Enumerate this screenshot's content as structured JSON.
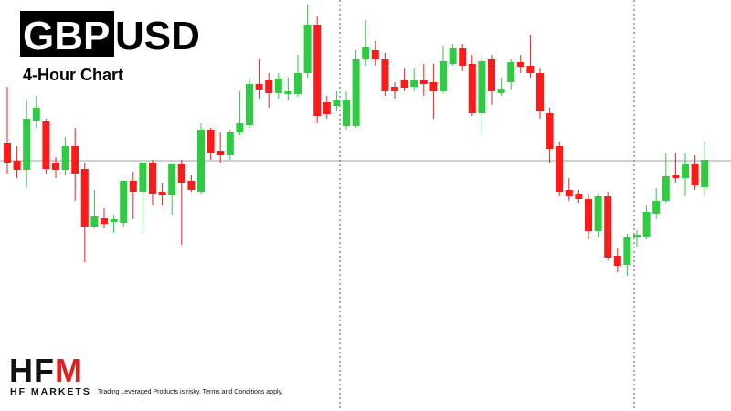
{
  "chart_data": {
    "type": "candlestick",
    "symbol_base": "GBP",
    "symbol_quote": "USD",
    "subtitle": "4-Hour Chart",
    "brand_mark": [
      "HF",
      "M"
    ],
    "brand_name": "HF MARKETS",
    "disclaimer": "Trading Leveraged Products is risky. Terms and Conditions apply.",
    "up_color": "#2ecc40",
    "down_color": "#ff1a1a",
    "ylim": [
      0,
      450
    ],
    "price_line": 274,
    "open": [
      293,
      274,
      264,
      318,
      317,
      272,
      264,
      290,
      265,
      202,
      211,
      207,
      206,
      252,
      240,
      272,
      240,
      236,
      270,
      252,
      240,
      308,
      285,
      280,
      305,
      313,
      358,
      362,
      348,
      347,
      347,
      370,
      423,
      338,
      334,
      312,
      312,
      385,
      395,
      385,
      355,
      362,
      355,
      362,
      360,
      350,
      380,
      397,
      380,
      326,
      385,
      348,
      360,
      382,
      378,
      370,
      326,
      290,
      242,
      238,
      232,
      197,
      235,
      170,
      160,
      190,
      190,
      216,
      230,
      258,
      255,
      270,
      245
    ],
    "high": [
      355,
      290,
      340,
      345,
      320,
      278,
      300,
      310,
      272,
      242,
      222,
      215,
      252,
      262,
      272,
      275,
      250,
      270,
      275,
      258,
      315,
      310,
      305,
      308,
      350,
      365,
      385,
      370,
      370,
      365,
      390,
      445,
      432,
      345,
      350,
      350,
      395,
      428,
      405,
      392,
      360,
      375,
      375,
      380,
      380,
      400,
      402,
      402,
      390,
      390,
      390,
      365,
      385,
      390,
      412,
      375,
      332,
      295,
      255,
      242,
      238,
      238,
      240,
      178,
      194,
      198,
      225,
      244,
      282,
      282,
      282,
      280,
      295
    ],
    "low": [
      260,
      255,
      245,
      310,
      260,
      255,
      258,
      230,
      163,
      200,
      200,
      195,
      202,
      210,
      195,
      225,
      225,
      215,
      182,
      240,
      238,
      275,
      272,
      275,
      302,
      310,
      342,
      332,
      342,
      340,
      344,
      365,
      315,
      320,
      328,
      308,
      310,
      378,
      378,
      345,
      342,
      350,
      350,
      345,
      320,
      348,
      378,
      372,
      323,
      302,
      335,
      345,
      352,
      370,
      365,
      320,
      272,
      235,
      230,
      228,
      188,
      190,
      165,
      152,
      148,
      180,
      188,
      210,
      228,
      250,
      235,
      242,
      235
    ],
    "close": [
      272,
      264,
      320,
      332,
      265,
      264,
      290,
      260,
      202,
      213,
      205,
      210,
      252,
      240,
      272,
      238,
      236,
      270,
      250,
      242,
      308,
      282,
      280,
      305,
      315,
      358,
      352,
      348,
      364,
      350,
      370,
      423,
      323,
      325,
      340,
      340,
      385,
      398,
      385,
      350,
      350,
      354,
      362,
      358,
      350,
      383,
      397,
      378,
      326,
      383,
      350,
      353,
      382,
      377,
      370,
      328,
      287,
      240,
      235,
      232,
      197,
      235,
      168,
      159,
      190,
      193,
      218,
      230,
      257,
      255,
      270,
      247,
      275
    ]
  }
}
